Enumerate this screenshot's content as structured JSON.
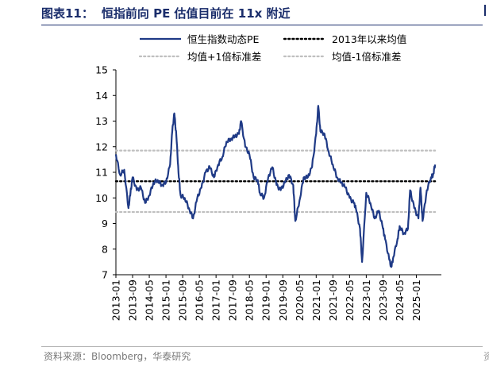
{
  "header": {
    "label": "图表11：",
    "title": "恒指前向 PE 估值目前在 11x 附近"
  },
  "footer": {
    "source": "资料来源：Bloomberg，华泰研究",
    "right_fragment": "资"
  },
  "colors": {
    "title": "#1a2d6b",
    "line": "#1f3a86",
    "mean": "#000000",
    "band": "#bfbfbf"
  },
  "chart_data": {
    "type": "line",
    "title": "",
    "xlabel": "",
    "ylabel": "",
    "ylim": [
      7,
      15
    ],
    "yticks": [
      "7",
      "8",
      "9",
      "10",
      "11",
      "12",
      "13",
      "14",
      "15"
    ],
    "xlim": [
      "2013-01",
      "2026-01"
    ],
    "xticks": [
      "2013-01",
      "2013-09",
      "2014-05",
      "2015-01",
      "2015-09",
      "2016-05",
      "2017-01",
      "2017-09",
      "2018-05",
      "2019-01",
      "2019-09",
      "2020-05",
      "2021-01",
      "2021-09",
      "2022-05",
      "2023-01",
      "2023-09",
      "2024-05",
      "2025-01"
    ],
    "grid": false,
    "legend_position": "top",
    "legend": [
      "恒生指数动态PE",
      "2013年以来均值",
      "均值+1倍标准差",
      "均值-1倍标准差"
    ],
    "series": [
      {
        "name": "恒生指数动态PE",
        "style": "solid",
        "x": [
          "2013-01",
          "2013-03",
          "2013-05",
          "2013-07",
          "2013-08",
          "2013-09",
          "2013-11",
          "2014-01",
          "2014-03",
          "2014-05",
          "2014-07",
          "2014-09",
          "2014-11",
          "2015-01",
          "2015-03",
          "2015-04",
          "2015-05",
          "2015-06",
          "2015-07",
          "2015-08",
          "2015-10",
          "2015-12",
          "2016-02",
          "2016-04",
          "2016-06",
          "2016-08",
          "2016-10",
          "2016-12",
          "2017-02",
          "2017-04",
          "2017-06",
          "2017-08",
          "2017-10",
          "2017-12",
          "2018-01",
          "2018-03",
          "2018-05",
          "2018-07",
          "2018-09",
          "2018-10",
          "2018-12",
          "2019-02",
          "2019-04",
          "2019-06",
          "2019-08",
          "2019-10",
          "2019-12",
          "2020-02",
          "2020-03",
          "2020-05",
          "2020-07",
          "2020-09",
          "2020-11",
          "2021-01",
          "2021-02",
          "2021-03",
          "2021-05",
          "2021-07",
          "2021-09",
          "2021-11",
          "2022-01",
          "2022-03",
          "2022-05",
          "2022-07",
          "2022-08",
          "2022-10",
          "2022-11",
          "2023-01",
          "2023-03",
          "2023-05",
          "2023-07",
          "2023-09",
          "2023-10",
          "2023-12",
          "2024-01",
          "2024-02",
          "2024-04",
          "2024-05",
          "2024-07",
          "2024-09",
          "2024-10",
          "2024-12",
          "2025-02",
          "2025-03",
          "2025-04",
          "2025-06",
          "2025-08",
          "2025-09",
          "2025-10"
        ],
        "y": [
          11.7,
          10.9,
          11.1,
          9.6,
          10.2,
          10.8,
          10.3,
          10.4,
          9.8,
          10.1,
          10.6,
          10.7,
          10.5,
          10.6,
          11.3,
          12.6,
          13.3,
          12.4,
          11.0,
          10.1,
          10.0,
          9.6,
          9.2,
          10.0,
          10.4,
          11.0,
          11.2,
          10.8,
          11.3,
          11.6,
          12.2,
          12.3,
          12.4,
          12.5,
          13.0,
          12.0,
          11.7,
          10.8,
          10.7,
          10.2,
          10.0,
          10.8,
          11.2,
          10.5,
          10.3,
          10.6,
          10.9,
          10.5,
          9.1,
          9.9,
          10.8,
          10.8,
          11.2,
          12.5,
          13.6,
          12.6,
          12.5,
          11.8,
          11.3,
          10.8,
          10.6,
          10.4,
          10.0,
          9.8,
          9.6,
          8.8,
          7.5,
          10.2,
          9.8,
          9.2,
          9.5,
          8.8,
          8.4,
          7.6,
          7.3,
          7.7,
          8.4,
          8.9,
          8.6,
          8.8,
          10.3,
          9.6,
          9.2,
          10.4,
          9.1,
          10.3,
          10.8,
          10.9,
          11.3
        ]
      },
      {
        "name": "2013年以来均值",
        "style": "dotted",
        "x": [
          "2013-01",
          "2025-10"
        ],
        "y": [
          10.65,
          10.65
        ]
      },
      {
        "name": "均值+1倍标准差",
        "style": "dotted",
        "x": [
          "2013-01",
          "2025-10"
        ],
        "y": [
          11.85,
          11.85
        ]
      },
      {
        "name": "均值-1倍标准差",
        "style": "dotted",
        "x": [
          "2013-01",
          "2025-10"
        ],
        "y": [
          9.45,
          9.45
        ]
      }
    ]
  }
}
